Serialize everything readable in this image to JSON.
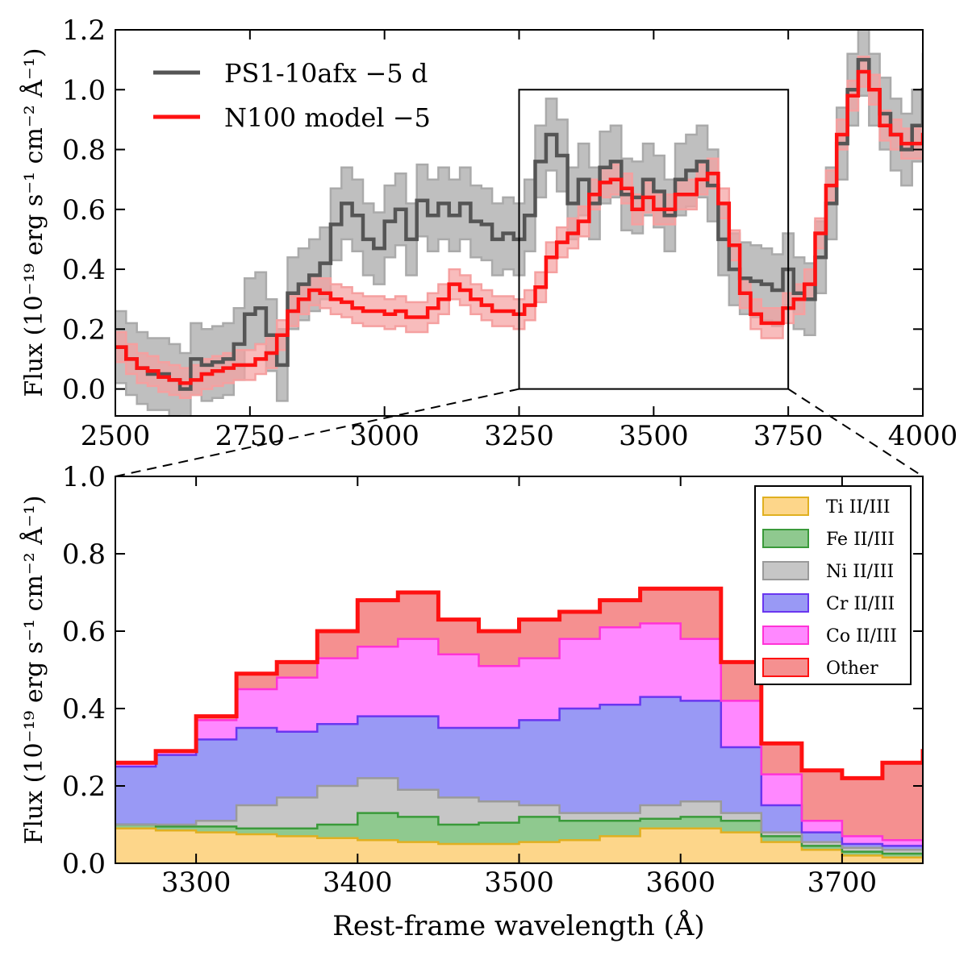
{
  "colors": {
    "observed_line": "#555555",
    "observed_band": "#aaaaaa",
    "model_line": "#ff1111",
    "model_band": "#f5a0a0",
    "Ti": "#fdd68a",
    "Fe": "#8fc98f",
    "Ni": "#c6c6c6",
    "Cr": "#9999f5",
    "Co": "#ff88ff",
    "Other": "#f59090"
  },
  "chart_data": [
    {
      "type": "line",
      "panel": "top",
      "ylabel": "Flux (10⁻¹⁹ erg s⁻¹ cm⁻² Å⁻¹)",
      "xlabel": "",
      "xlim": [
        2500,
        4000
      ],
      "ylim": [
        -0.09,
        1.2
      ],
      "xticks": [
        2500,
        2750,
        3000,
        3250,
        3500,
        3750,
        4000
      ],
      "xtick_labels": [
        "2500",
        "2750",
        "3000",
        "3250",
        "3500",
        "3750",
        "4000"
      ],
      "yticks": [
        0.0,
        0.2,
        0.4,
        0.6,
        0.8,
        1.0,
        1.2
      ],
      "ytick_labels": [
        "0.0",
        "0.2",
        "0.4",
        "0.6",
        "0.8",
        "1.0",
        "1.2"
      ],
      "zoom_box": {
        "x": [
          3250,
          3750
        ],
        "y": [
          0.0,
          1.0
        ]
      },
      "legend": {
        "placement": "top-left",
        "entries": [
          "PS1-10afx −5 d",
          "N100 model −5"
        ]
      },
      "series": [
        {
          "name": "PS1-10afx −5 d",
          "band": 0.12,
          "x": [
            2500,
            2520,
            2540,
            2560,
            2580,
            2600,
            2620,
            2640,
            2660,
            2680,
            2700,
            2720,
            2740,
            2760,
            2780,
            2800,
            2820,
            2840,
            2860,
            2880,
            2900,
            2920,
            2940,
            2960,
            2980,
            3000,
            3020,
            3040,
            3060,
            3080,
            3100,
            3120,
            3140,
            3160,
            3180,
            3200,
            3220,
            3240,
            3260,
            3280,
            3300,
            3320,
            3340,
            3360,
            3380,
            3400,
            3420,
            3440,
            3460,
            3480,
            3500,
            3520,
            3540,
            3560,
            3580,
            3600,
            3620,
            3640,
            3660,
            3680,
            3700,
            3720,
            3740,
            3760,
            3780,
            3800,
            3820,
            3840,
            3860,
            3880,
            3900,
            3920,
            3940,
            3960,
            3980,
            4000
          ],
          "values": [
            0.14,
            0.1,
            0.07,
            0.05,
            0.05,
            0.03,
            0.0,
            0.1,
            0.08,
            0.09,
            0.1,
            0.15,
            0.25,
            0.27,
            0.18,
            0.08,
            0.32,
            0.35,
            0.38,
            0.42,
            0.55,
            0.62,
            0.58,
            0.5,
            0.47,
            0.56,
            0.6,
            0.5,
            0.63,
            0.58,
            0.62,
            0.58,
            0.62,
            0.56,
            0.55,
            0.5,
            0.52,
            0.5,
            0.58,
            0.76,
            0.85,
            0.78,
            0.62,
            0.7,
            0.62,
            0.74,
            0.76,
            0.65,
            0.64,
            0.7,
            0.66,
            0.58,
            0.7,
            0.73,
            0.76,
            0.68,
            0.5,
            0.4,
            0.37,
            0.36,
            0.35,
            0.33,
            0.4,
            0.32,
            0.3,
            0.44,
            0.62,
            0.82,
            1.0,
            1.1,
            1.0,
            0.92,
            0.85,
            0.8,
            0.88,
            1.0
          ]
        },
        {
          "name": "N100 model −5",
          "band": 0.05,
          "x": [
            2500,
            2520,
            2540,
            2560,
            2580,
            2600,
            2620,
            2640,
            2660,
            2680,
            2700,
            2720,
            2740,
            2760,
            2780,
            2800,
            2820,
            2840,
            2860,
            2880,
            2900,
            2920,
            2940,
            2960,
            2980,
            3000,
            3020,
            3040,
            3060,
            3080,
            3100,
            3120,
            3140,
            3160,
            3180,
            3200,
            3220,
            3240,
            3260,
            3280,
            3300,
            3320,
            3340,
            3360,
            3380,
            3400,
            3420,
            3440,
            3460,
            3480,
            3500,
            3520,
            3540,
            3560,
            3580,
            3600,
            3620,
            3640,
            3660,
            3680,
            3700,
            3720,
            3740,
            3760,
            3780,
            3800,
            3820,
            3840,
            3860,
            3880,
            3900,
            3920,
            3940,
            3960,
            3980,
            4000
          ],
          "values": [
            0.14,
            0.1,
            0.07,
            0.06,
            0.04,
            0.03,
            0.02,
            0.03,
            0.05,
            0.06,
            0.07,
            0.08,
            0.08,
            0.1,
            0.12,
            0.18,
            0.26,
            0.3,
            0.33,
            0.32,
            0.3,
            0.29,
            0.27,
            0.26,
            0.26,
            0.25,
            0.26,
            0.24,
            0.24,
            0.27,
            0.3,
            0.35,
            0.33,
            0.3,
            0.28,
            0.26,
            0.26,
            0.25,
            0.28,
            0.34,
            0.44,
            0.49,
            0.52,
            0.56,
            0.65,
            0.69,
            0.7,
            0.67,
            0.6,
            0.64,
            0.6,
            0.6,
            0.65,
            0.65,
            0.7,
            0.72,
            0.62,
            0.48,
            0.32,
            0.25,
            0.22,
            0.22,
            0.27,
            0.3,
            0.35,
            0.52,
            0.68,
            0.85,
            0.98,
            1.06,
            1.0,
            0.88,
            0.85,
            0.82,
            0.82,
            0.85
          ]
        }
      ]
    },
    {
      "type": "area",
      "panel": "bottom",
      "stacked": true,
      "xlabel": "Rest-frame wavelength (Å)",
      "ylabel": "Flux (10⁻¹⁹ erg s⁻¹ cm⁻² Å⁻¹)",
      "xlim": [
        3250,
        3750
      ],
      "ylim": [
        0.0,
        1.0
      ],
      "xticks": [
        3300,
        3400,
        3500,
        3600,
        3700
      ],
      "xtick_labels": [
        "3300",
        "3400",
        "3500",
        "3600",
        "3700"
      ],
      "yticks": [
        0.0,
        0.2,
        0.4,
        0.6,
        0.8,
        1.0
      ],
      "ytick_labels": [
        "0.0",
        "0.2",
        "0.4",
        "0.6",
        "0.8",
        "1.0"
      ],
      "legend": {
        "placement": "top-right",
        "entries": [
          "Ti II/III",
          "Fe II/III",
          "Ni II/III",
          "Cr II/III",
          "Co II/III",
          "Other"
        ]
      },
      "x": [
        3250,
        3275,
        3300,
        3325,
        3350,
        3375,
        3400,
        3425,
        3450,
        3475,
        3500,
        3525,
        3550,
        3575,
        3600,
        3625,
        3650,
        3675,
        3700,
        3725,
        3750
      ],
      "cumulative": {
        "Ti II/III": [
          0.09,
          0.085,
          0.08,
          0.075,
          0.07,
          0.065,
          0.06,
          0.055,
          0.05,
          0.05,
          0.055,
          0.06,
          0.07,
          0.09,
          0.09,
          0.08,
          0.055,
          0.035,
          0.02,
          0.015,
          0.012
        ],
        "Fe II/III": [
          0.1,
          0.095,
          0.095,
          0.09,
          0.09,
          0.1,
          0.13,
          0.12,
          0.1,
          0.105,
          0.12,
          0.11,
          0.11,
          0.115,
          0.12,
          0.11,
          0.07,
          0.045,
          0.03,
          0.025,
          0.02
        ],
        "Ni II/III": [
          0.1,
          0.1,
          0.11,
          0.15,
          0.17,
          0.2,
          0.22,
          0.19,
          0.17,
          0.16,
          0.15,
          0.13,
          0.13,
          0.15,
          0.16,
          0.13,
          0.08,
          0.055,
          0.04,
          0.035,
          0.03
        ],
        "Cr II/III": [
          0.25,
          0.28,
          0.32,
          0.35,
          0.34,
          0.36,
          0.38,
          0.38,
          0.35,
          0.35,
          0.37,
          0.4,
          0.41,
          0.43,
          0.42,
          0.3,
          0.15,
          0.08,
          0.05,
          0.045,
          0.04
        ],
        "Co II/III": [
          0.26,
          0.29,
          0.37,
          0.45,
          0.48,
          0.53,
          0.56,
          0.58,
          0.54,
          0.51,
          0.53,
          0.58,
          0.61,
          0.62,
          0.58,
          0.42,
          0.23,
          0.11,
          0.07,
          0.06,
          0.05
        ],
        "Other": [
          0.26,
          0.29,
          0.38,
          0.49,
          0.52,
          0.6,
          0.68,
          0.7,
          0.63,
          0.6,
          0.63,
          0.65,
          0.68,
          0.71,
          0.71,
          0.52,
          0.31,
          0.24,
          0.22,
          0.26,
          0.29
        ]
      }
    }
  ]
}
